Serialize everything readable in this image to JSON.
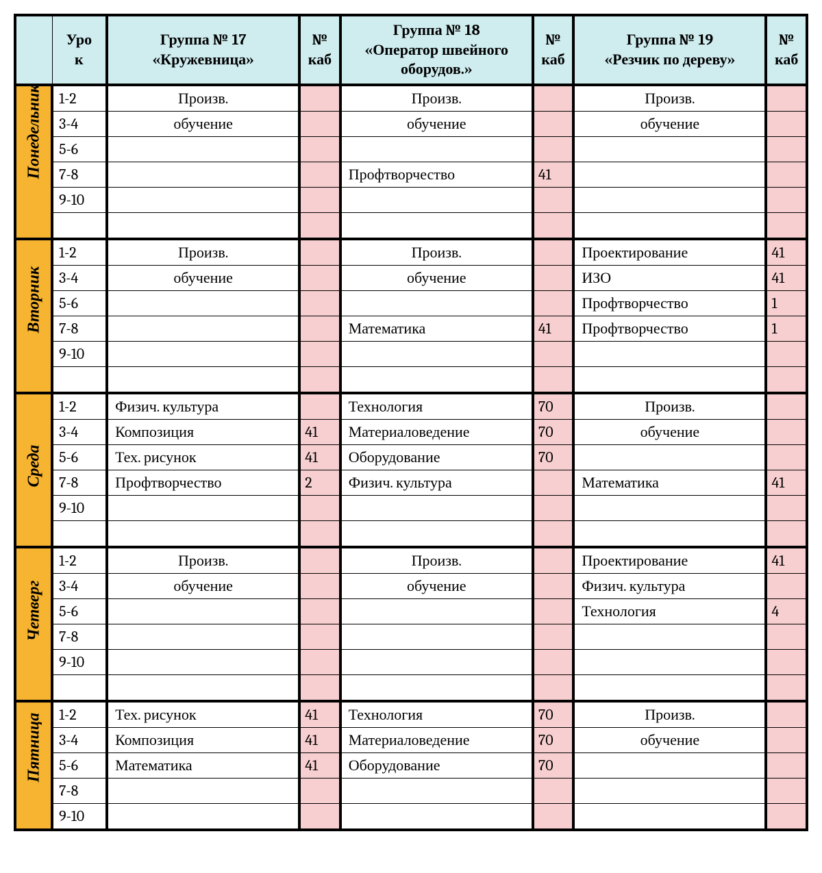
{
  "header": {
    "lesson": "Урок",
    "room": "№ каб",
    "groups": [
      {
        "title": "Группа № 17",
        "subtitle": "«Кружевница»"
      },
      {
        "title": "Группа № 18",
        "subtitle": "«Оператор швейного оборудов.»"
      },
      {
        "title": "Группа № 19",
        "subtitle": "«Резчик по дереву»"
      }
    ]
  },
  "lessons": [
    "1-2",
    "3-4",
    "5-6",
    "7-8",
    "9-10",
    ""
  ],
  "days": [
    {
      "name": "Понедельник",
      "rows": [
        {
          "g1": {
            "text": "Произв.",
            "align": "c"
          },
          "r1": "",
          "g2": {
            "text": "Произв.",
            "align": "c"
          },
          "r2": "",
          "g3": {
            "text": "Произв.",
            "align": "c"
          },
          "r3": ""
        },
        {
          "g1": {
            "text": "обучение",
            "align": "c"
          },
          "r1": "",
          "g2": {
            "text": "обучение",
            "align": "c"
          },
          "r2": "",
          "g3": {
            "text": "обучение",
            "align": "c"
          },
          "r3": ""
        },
        {
          "g1": {
            "text": ""
          },
          "r1": "",
          "g2": {
            "text": ""
          },
          "r2": "",
          "g3": {
            "text": ""
          },
          "r3": ""
        },
        {
          "g1": {
            "text": ""
          },
          "r1": "",
          "g2": {
            "text": "Профтворчество"
          },
          "r2": "41",
          "g3": {
            "text": ""
          },
          "r3": ""
        },
        {
          "g1": {
            "text": ""
          },
          "r1": "",
          "g2": {
            "text": ""
          },
          "r2": "",
          "g3": {
            "text": ""
          },
          "r3": ""
        },
        {
          "g1": {
            "text": ""
          },
          "r1": "",
          "g2": {
            "text": ""
          },
          "r2": "",
          "g3": {
            "text": ""
          },
          "r3": ""
        }
      ]
    },
    {
      "name": "Вторник",
      "rows": [
        {
          "g1": {
            "text": "Произв.",
            "align": "c"
          },
          "r1": "",
          "g2": {
            "text": "Произв.",
            "align": "c"
          },
          "r2": "",
          "g3": {
            "text": "Проектирование"
          },
          "r3": "41"
        },
        {
          "g1": {
            "text": "обучение",
            "align": "c"
          },
          "r1": "",
          "g2": {
            "text": "обучение",
            "align": "c"
          },
          "r2": "",
          "g3": {
            "text": "ИЗО"
          },
          "r3": "41"
        },
        {
          "g1": {
            "text": ""
          },
          "r1": "",
          "g2": {
            "text": ""
          },
          "r2": "",
          "g3": {
            "text": "Профтворчество"
          },
          "r3": "1"
        },
        {
          "g1": {
            "text": ""
          },
          "r1": "",
          "g2": {
            "text": "Математика"
          },
          "r2": "41",
          "g3": {
            "text": "Профтворчество"
          },
          "r3": "1"
        },
        {
          "g1": {
            "text": ""
          },
          "r1": "",
          "g2": {
            "text": ""
          },
          "r2": "",
          "g3": {
            "text": ""
          },
          "r3": ""
        },
        {
          "g1": {
            "text": ""
          },
          "r1": "",
          "g2": {
            "text": ""
          },
          "r2": "",
          "g3": {
            "text": ""
          },
          "r3": ""
        }
      ]
    },
    {
      "name": "Среда",
      "rows": [
        {
          "g1": {
            "text": "Физич. культура"
          },
          "r1": "",
          "g2": {
            "text": "Технология"
          },
          "r2": "70",
          "g3": {
            "text": "Произв.",
            "align": "c"
          },
          "r3": ""
        },
        {
          "g1": {
            "text": "Композиция"
          },
          "r1": "41",
          "g2": {
            "text": "Материаловедение"
          },
          "r2": "70",
          "g3": {
            "text": "обучение",
            "align": "c"
          },
          "r3": ""
        },
        {
          "g1": {
            "text": "Тех. рисунок"
          },
          "r1": "41",
          "g2": {
            "text": "Оборудование"
          },
          "r2": "70",
          "g3": {
            "text": ""
          },
          "r3": ""
        },
        {
          "g1": {
            "text": "Профтворчество"
          },
          "r1": "2",
          "g2": {
            "text": "Физич. культура"
          },
          "r2": "",
          "g3": {
            "text": "Математика"
          },
          "r3": "41"
        },
        {
          "g1": {
            "text": ""
          },
          "r1": "",
          "g2": {
            "text": ""
          },
          "r2": "",
          "g3": {
            "text": ""
          },
          "r3": ""
        },
        {
          "g1": {
            "text": ""
          },
          "r1": "",
          "g2": {
            "text": ""
          },
          "r2": "",
          "g3": {
            "text": ""
          },
          "r3": ""
        }
      ]
    },
    {
      "name": "Четверг",
      "rows": [
        {
          "g1": {
            "text": "Произв.",
            "align": "c"
          },
          "r1": "",
          "g2": {
            "text": "Произв.",
            "align": "c"
          },
          "r2": "",
          "g3": {
            "text": "Проектирование"
          },
          "r3": "41"
        },
        {
          "g1": {
            "text": "обучение",
            "align": "c"
          },
          "r1": "",
          "g2": {
            "text": "обучение",
            "align": "c"
          },
          "r2": "",
          "g3": {
            "text": "Физич. культура"
          },
          "r3": ""
        },
        {
          "g1": {
            "text": ""
          },
          "r1": "",
          "g2": {
            "text": ""
          },
          "r2": "",
          "g3": {
            "text": "Технология"
          },
          "r3": "4"
        },
        {
          "g1": {
            "text": ""
          },
          "r1": "",
          "g2": {
            "text": ""
          },
          "r2": "",
          "g3": {
            "text": ""
          },
          "r3": ""
        },
        {
          "g1": {
            "text": ""
          },
          "r1": "",
          "g2": {
            "text": ""
          },
          "r2": "",
          "g3": {
            "text": ""
          },
          "r3": ""
        },
        {
          "g1": {
            "text": ""
          },
          "r1": "",
          "g2": {
            "text": ""
          },
          "r2": "",
          "g3": {
            "text": ""
          },
          "r3": ""
        }
      ]
    },
    {
      "name": "Пятница",
      "shortRows": 5,
      "rows": [
        {
          "g1": {
            "text": "Тех. рисунок"
          },
          "r1": "41",
          "g2": {
            "text": "Технология"
          },
          "r2": "70",
          "g3": {
            "text": "Произв.",
            "align": "c"
          },
          "r3": ""
        },
        {
          "g1": {
            "text": "Композиция"
          },
          "r1": "41",
          "g2": {
            "text": "Материаловедение"
          },
          "r2": "70",
          "g3": {
            "text": "обучение",
            "align": "c"
          },
          "r3": ""
        },
        {
          "g1": {
            "text": "Математика"
          },
          "r1": "41",
          "g2": {
            "text": "Оборудование"
          },
          "r2": "70",
          "g3": {
            "text": ""
          },
          "r3": ""
        },
        {
          "g1": {
            "text": ""
          },
          "r1": "",
          "g2": {
            "text": ""
          },
          "r2": "",
          "g3": {
            "text": ""
          },
          "r3": ""
        },
        {
          "g1": {
            "text": ""
          },
          "r1": "",
          "g2": {
            "text": ""
          },
          "r2": "",
          "g3": {
            "text": ""
          },
          "r3": ""
        }
      ]
    }
  ],
  "colors": {
    "header_bg": "#cfecef",
    "day_bg": "#f7b431",
    "room_bg": "#f8cfd0",
    "border": "#000000"
  }
}
